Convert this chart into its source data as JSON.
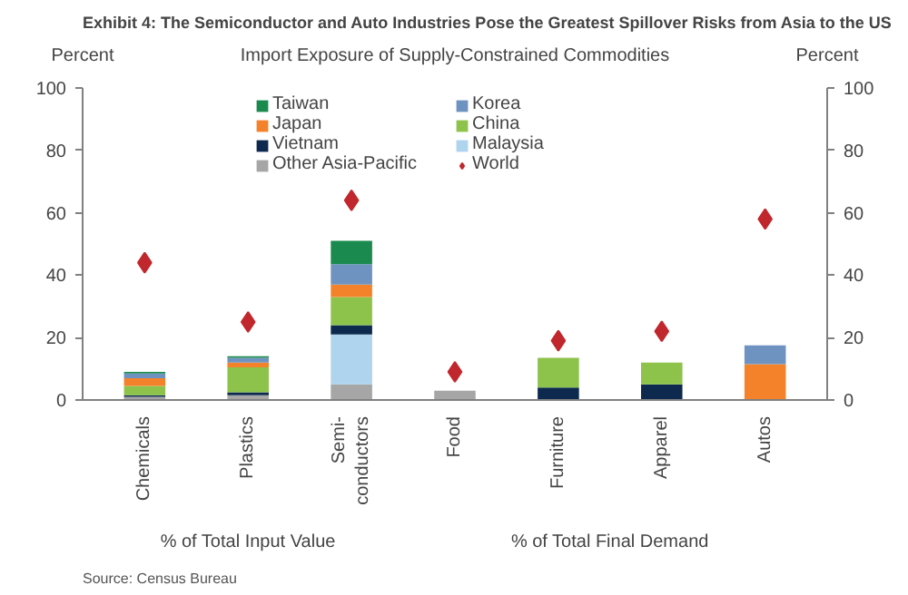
{
  "chart_data": {
    "type": "bar",
    "stacked": true,
    "title": "Exhibit 4: The Semiconductor and Auto Industries Pose the Greatest Spillover Risks from Asia to the US",
    "subtitle": "Import Exposure of Supply-Constrained Commodities",
    "ylabel": "Percent",
    "y2label": "Percent",
    "categories": [
      "Chemicals",
      "Plastics",
      "Semi-\nconductors",
      "Food",
      "Furniture",
      "Apparel",
      "Autos"
    ],
    "series": [
      {
        "name": "Other Asia-Pacific",
        "color": "#a6a6a6",
        "values": [
          1,
          1.5,
          5,
          3,
          0,
          0,
          0
        ]
      },
      {
        "name": "Malaysia",
        "color": "#aed4ee",
        "values": [
          0,
          0,
          16,
          0,
          0,
          0,
          0
        ]
      },
      {
        "name": "Vietnam",
        "color": "#0d2a4e",
        "values": [
          0.5,
          1,
          3,
          0,
          4,
          5,
          0
        ]
      },
      {
        "name": "China",
        "color": "#8dc34a",
        "values": [
          3,
          8,
          9,
          0,
          9.5,
          7,
          0
        ]
      },
      {
        "name": "Japan",
        "color": "#f4822a",
        "values": [
          2.5,
          1.5,
          4,
          0,
          0,
          0,
          11.5
        ]
      },
      {
        "name": "Korea",
        "color": "#6f93c0",
        "values": [
          1.5,
          1.5,
          6.5,
          0,
          0,
          0,
          6
        ]
      },
      {
        "name": "Taiwan",
        "color": "#1a8a4f",
        "values": [
          0.5,
          0.5,
          7.5,
          0,
          0,
          0,
          0
        ]
      },
      {
        "name": "World",
        "type": "scatter",
        "color": "#c0282d",
        "values": [
          44,
          25,
          64,
          9,
          19,
          22,
          58
        ]
      }
    ],
    "ylim": [
      0,
      100
    ],
    "yticks": [
      0,
      20,
      40,
      60,
      80,
      100
    ],
    "y2lim": [
      0,
      100
    ],
    "y2ticks": [
      0,
      20,
      40,
      60,
      80,
      100
    ],
    "marker": "diamond",
    "grid": false,
    "legend": "top",
    "annotations": [
      "% of Total Input Value",
      "% of Total Final Demand",
      "Source: Census Bureau"
    ]
  }
}
